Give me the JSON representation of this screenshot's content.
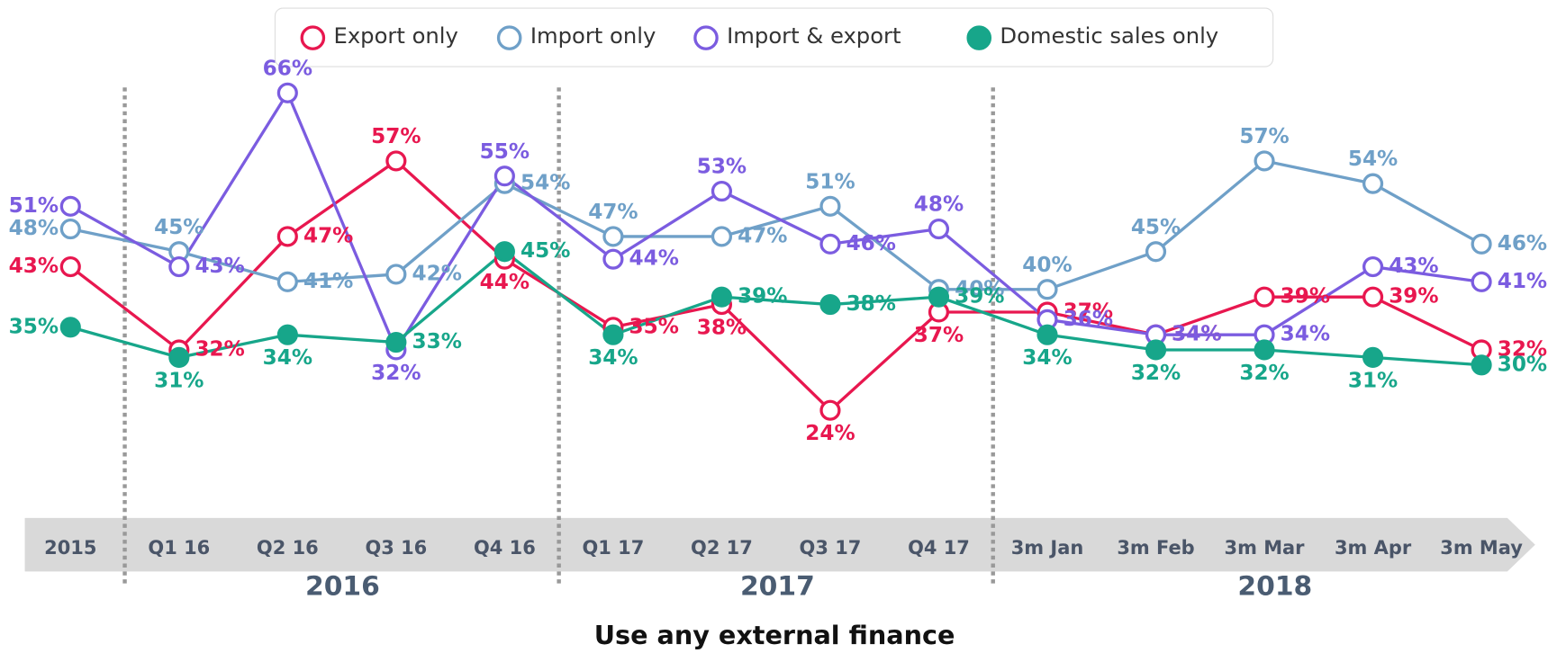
{
  "chart_data": {
    "type": "line",
    "title": "Use  any external finance",
    "categories": [
      "2015",
      "Q1 16",
      "Q2 16",
      "Q3 16",
      "Q4 16",
      "Q1 17",
      "Q2 17",
      "Q3 17",
      "Q4 17",
      "3m Jan",
      "3m Feb",
      "3m Mar",
      "3m Apr",
      "3m May"
    ],
    "year_labels": [
      "2016",
      "2017",
      "2018"
    ],
    "ylim": [
      20,
      70
    ],
    "legend": "top",
    "series": [
      {
        "name": "Export only",
        "color": "#e8174f",
        "filled": false,
        "values": [
          43,
          32,
          47,
          57,
          44,
          35,
          38,
          24,
          37,
          37,
          34,
          39,
          39,
          32
        ],
        "value_labels": [
          "43%",
          "32%",
          "47%",
          "57%",
          "44%",
          "35%",
          "38%",
          "24%",
          "37%",
          "37%",
          "34%",
          "39%",
          "39%",
          "32%"
        ]
      },
      {
        "name": "Import only",
        "color": "#6fa0c8",
        "filled": false,
        "values": [
          48,
          45,
          41,
          42,
          54,
          47,
          47,
          51,
          40,
          40,
          45,
          57,
          54,
          46
        ],
        "value_labels": [
          "48%",
          "45%",
          "41%",
          "42%",
          "54%",
          "47%",
          "47%",
          "51%",
          "40%",
          "40%",
          "45%",
          "57%",
          "54%",
          "46%"
        ]
      },
      {
        "name": "Import & export",
        "color": "#7b5ce0",
        "filled": false,
        "values": [
          51,
          43,
          66,
          32,
          55,
          44,
          53,
          46,
          48,
          36,
          34,
          34,
          43,
          41
        ],
        "value_labels": [
          "51%",
          "43%",
          "66%",
          "32%",
          "55%",
          "44%",
          "53%",
          "46%",
          "48%",
          "36%",
          "34%",
          "34%",
          "43%",
          "41%"
        ]
      },
      {
        "name": "Domestic sales only",
        "color": "#17a68a",
        "filled": true,
        "values": [
          35,
          31,
          34,
          33,
          45,
          34,
          39,
          38,
          39,
          34,
          32,
          32,
          31,
          30
        ],
        "value_labels": [
          "35%",
          "31%",
          "34%",
          "33%",
          "45%",
          "34%",
          "39%",
          "38%",
          "39%",
          "34%",
          "32%",
          "32%",
          "31%",
          "30%"
        ]
      }
    ]
  }
}
